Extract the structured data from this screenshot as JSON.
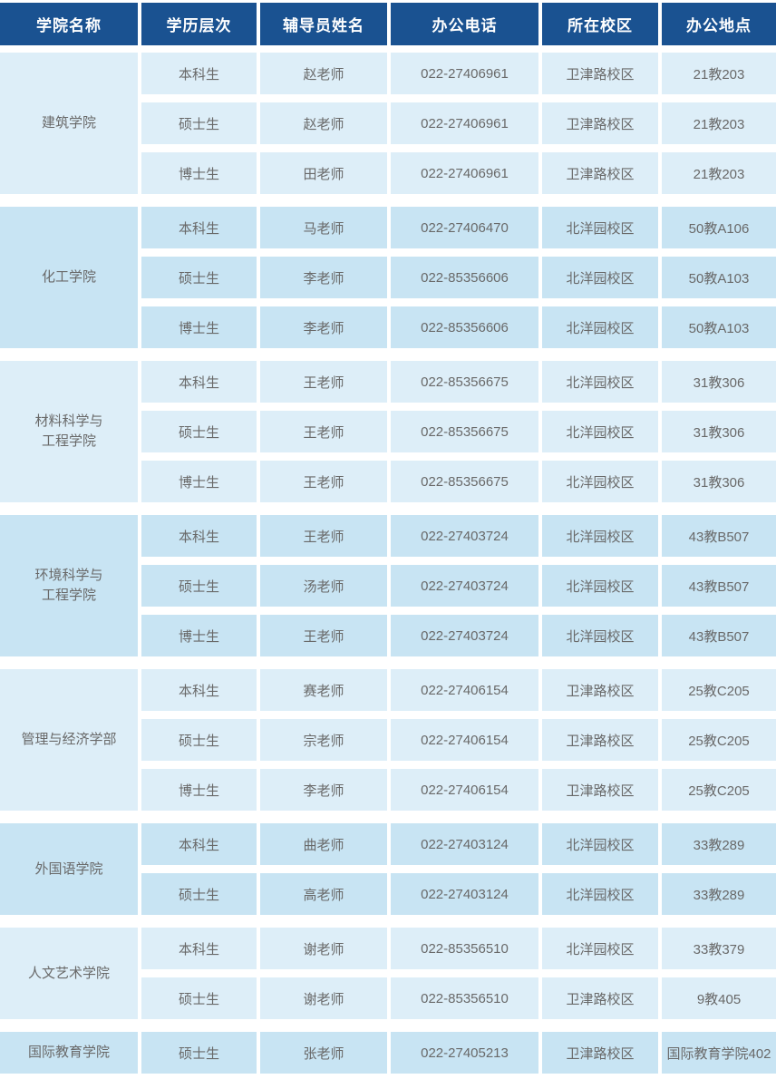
{
  "columns": [
    "学院名称",
    "学历层次",
    "辅导员姓名",
    "办公电话",
    "所在校区",
    "办公地点"
  ],
  "groups": [
    {
      "college": "建筑学院",
      "rows": [
        {
          "level": "本科生",
          "counselor": "赵老师",
          "phone": "022-27406961",
          "campus": "卫津路校区",
          "location": "21教203"
        },
        {
          "level": "硕士生",
          "counselor": "赵老师",
          "phone": "022-27406961",
          "campus": "卫津路校区",
          "location": "21教203"
        },
        {
          "level": "博士生",
          "counselor": "田老师",
          "phone": "022-27406961",
          "campus": "卫津路校区",
          "location": "21教203"
        }
      ]
    },
    {
      "college": "化工学院",
      "rows": [
        {
          "level": "本科生",
          "counselor": "马老师",
          "phone": "022-27406470",
          "campus": "北洋园校区",
          "location": "50教A106"
        },
        {
          "level": "硕士生",
          "counselor": "李老师",
          "phone": "022-85356606",
          "campus": "北洋园校区",
          "location": "50教A103"
        },
        {
          "level": "博士生",
          "counselor": "李老师",
          "phone": "022-85356606",
          "campus": "北洋园校区",
          "location": "50教A103"
        }
      ]
    },
    {
      "college": "材料科学与\n工程学院",
      "rows": [
        {
          "level": "本科生",
          "counselor": "王老师",
          "phone": "022-85356675",
          "campus": "北洋园校区",
          "location": "31教306"
        },
        {
          "level": "硕士生",
          "counselor": "王老师",
          "phone": "022-85356675",
          "campus": "北洋园校区",
          "location": "31教306"
        },
        {
          "level": "博士生",
          "counselor": "王老师",
          "phone": "022-85356675",
          "campus": "北洋园校区",
          "location": "31教306"
        }
      ]
    },
    {
      "college": "环境科学与\n工程学院",
      "rows": [
        {
          "level": "本科生",
          "counselor": "王老师",
          "phone": "022-27403724",
          "campus": "北洋园校区",
          "location": "43教B507"
        },
        {
          "level": "硕士生",
          "counselor": "汤老师",
          "phone": "022-27403724",
          "campus": "北洋园校区",
          "location": "43教B507"
        },
        {
          "level": "博士生",
          "counselor": "王老师",
          "phone": "022-27403724",
          "campus": "北洋园校区",
          "location": "43教B507"
        }
      ]
    },
    {
      "college": "管理与经济学部",
      "rows": [
        {
          "level": "本科生",
          "counselor": "赛老师",
          "phone": "022-27406154",
          "campus": "卫津路校区",
          "location": "25教C205"
        },
        {
          "level": "硕士生",
          "counselor": "宗老师",
          "phone": "022-27406154",
          "campus": "卫津路校区",
          "location": "25教C205"
        },
        {
          "level": "博士生",
          "counselor": "李老师",
          "phone": "022-27406154",
          "campus": "卫津路校区",
          "location": "25教C205"
        }
      ]
    },
    {
      "college": "外国语学院",
      "rows": [
        {
          "level": "本科生",
          "counselor": "曲老师",
          "phone": "022-27403124",
          "campus": "北洋园校区",
          "location": "33教289"
        },
        {
          "level": "硕士生",
          "counselor": "高老师",
          "phone": "022-27403124",
          "campus": "北洋园校区",
          "location": "33教289"
        }
      ]
    },
    {
      "college": "人文艺术学院",
      "rows": [
        {
          "level": "本科生",
          "counselor": "谢老师",
          "phone": "022-85356510",
          "campus": "北洋园校区",
          "location": "33教379"
        },
        {
          "level": "硕士生",
          "counselor": "谢老师",
          "phone": "022-85356510",
          "campus": "卫津路校区",
          "location": "9教405"
        }
      ]
    },
    {
      "college": "国际教育学院",
      "rows": [
        {
          "level": "硕士生",
          "counselor": "张老师",
          "phone": "022-27405213",
          "campus": "卫津路校区",
          "location": "国际教育学院402"
        }
      ]
    }
  ],
  "colors": {
    "header_bg": "#1a5291",
    "header_text": "#ffffff",
    "row_light_bg": "#ddeef8",
    "row_dark_bg": "#c8e4f3",
    "cell_text": "#696969"
  }
}
